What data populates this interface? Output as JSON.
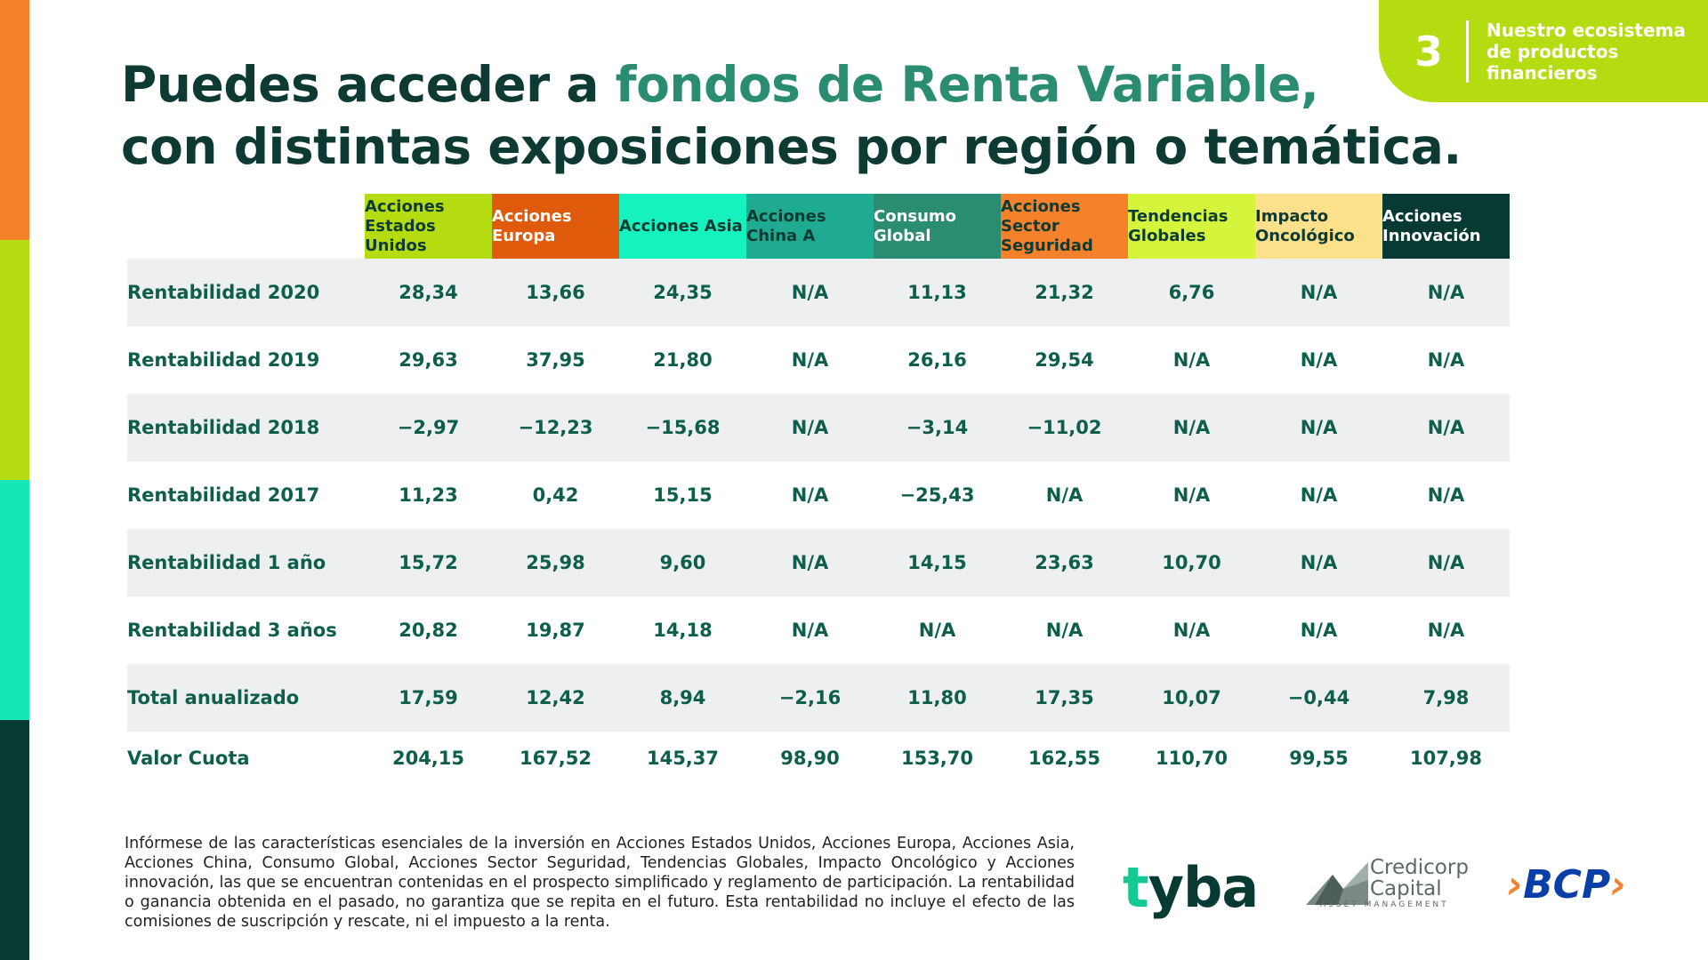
{
  "badge": {
    "number": "3",
    "text": "Nuestro ecosistema de productos financieros"
  },
  "title": {
    "line1_plain": "Puedes acceder a ",
    "line1_accent": "fondos de Renta Variable,",
    "line2": "con distintas exposiciones por región o temática."
  },
  "colors": {
    "accent_title": "#2a8c70",
    "dark_green": "#073a32",
    "lime": "#b5dc10",
    "orange": "#f5812a",
    "aqua": "#15e7b8"
  },
  "table": {
    "columns": [
      {
        "label": "Acciones Estados Unidos",
        "bg": "#b5dc10",
        "fg": "#0d3b34"
      },
      {
        "label": "Acciones Europa",
        "bg": "#df5a0b",
        "fg": "#ffffff"
      },
      {
        "label": "Acciones Asia",
        "bg": "#15f2c0",
        "fg": "#0d3b34"
      },
      {
        "label": "Acciones China A",
        "bg": "#1faa92",
        "fg": "#0d3b34"
      },
      {
        "label": "Consumo Global",
        "bg": "#2a8c70",
        "fg": "#ffffff"
      },
      {
        "label": "Acciones Sector Seguridad",
        "bg": "#f5812a",
        "fg": "#0d3b34"
      },
      {
        "label": "Tendencias Globales",
        "bg": "#d4f53c",
        "fg": "#0d3b34"
      },
      {
        "label": "Impacto Oncológico",
        "bg": "#fde08a",
        "fg": "#0d3b34"
      },
      {
        "label": "Acciones Innovación",
        "bg": "#073a32",
        "fg": "#ffffff"
      }
    ],
    "rows": [
      {
        "label": "Rentabilidad 2020",
        "values": [
          "28,34",
          "13,66",
          "24,35",
          "N/A",
          "11,13",
          "21,32",
          "6,76",
          "N/A",
          "N/A"
        ]
      },
      {
        "label": "Rentabilidad 2019",
        "values": [
          "29,63",
          "37,95",
          "21,80",
          "N/A",
          "26,16",
          "29,54",
          "N/A",
          "N/A",
          "N/A"
        ]
      },
      {
        "label": "Rentabilidad 2018",
        "values": [
          "−2,97",
          "−12,23",
          "−15,68",
          "N/A",
          "−3,14",
          "−11,02",
          "N/A",
          "N/A",
          "N/A"
        ]
      },
      {
        "label": "Rentabilidad 2017",
        "values": [
          "11,23",
          "0,42",
          "15,15",
          "N/A",
          "−25,43",
          "N/A",
          "N/A",
          "N/A",
          "N/A"
        ]
      },
      {
        "label": "Rentabilidad 1 año",
        "values": [
          "15,72",
          "25,98",
          "9,60",
          "N/A",
          "14,15",
          "23,63",
          "10,70",
          "N/A",
          "N/A"
        ]
      },
      {
        "label": "Rentabilidad 3 años",
        "values": [
          "20,82",
          "19,87",
          "14,18",
          "N/A",
          "N/A",
          "N/A",
          "N/A",
          "N/A",
          "N/A"
        ]
      },
      {
        "label": "Total anualizado",
        "values": [
          "17,59",
          "12,42",
          "8,94",
          "−2,16",
          "11,80",
          "17,35",
          "10,07",
          "−0,44",
          "7,98"
        ]
      },
      {
        "label": "Valor Cuota",
        "values": [
          "204,15",
          "167,52",
          "145,37",
          "98,90",
          "153,70",
          "162,55",
          "110,70",
          "99,55",
          "107,98"
        ]
      }
    ]
  },
  "disclaimer": "Infórmese de las características esenciales de la inversión en Acciones Estados Unidos, Acciones Europa, Acciones Asia, Acciones China, Consumo Global, Acciones Sector Seguridad, Tendencias Globales, Impacto Oncológico y Acciones innovación, las que se encuentran contenidas en el prospecto simplificado y reglamento de participación. La rentabilidad o ganancia obtenida en el pasado, no garantiza que se repita en el futuro. Esta rentabilidad no incluye el efecto de las comisiones de suscripción y rescate, ni el impuesto a la renta.",
  "logos": {
    "tyba": "tyba",
    "credicorp_name": "Credicorp Capital",
    "credicorp_sub": "ASSET MANAGEMENT",
    "bcp": "BCP"
  }
}
